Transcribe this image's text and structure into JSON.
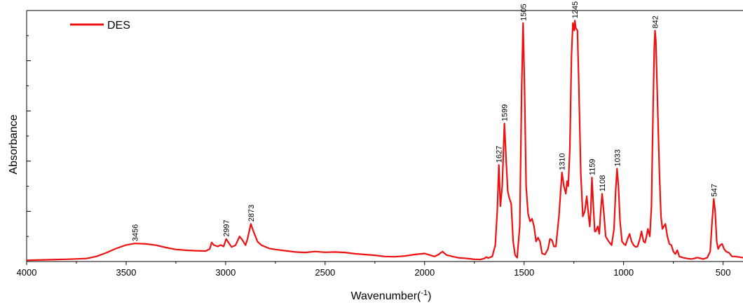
{
  "chart_data": {
    "type": "line",
    "title": "",
    "xlabel": "Wavenumber(",
    "xlabel_sup": "-1",
    "xlabel_end": ")",
    "ylabel": "Absorbance",
    "xlim": [
      4000,
      400
    ],
    "ylim": [
      0,
      100
    ],
    "x_reversed": true,
    "xticks": [
      4000,
      3500,
      3000,
      2500,
      2000,
      1500,
      1000,
      500
    ],
    "xtick_labels": [
      "4000",
      "3500",
      "3000",
      "2500",
      "2000",
      "1500",
      "1000",
      "500"
    ],
    "yticks_major": [
      0,
      20,
      40,
      60,
      80,
      100
    ],
    "yticks_minor": [
      10,
      30,
      50,
      70,
      90
    ],
    "grid": false,
    "legend_position": "top-left",
    "series": [
      {
        "name": "DES",
        "color": "#ee1111",
        "points": [
          [
            4000,
            0.5
          ],
          [
            3900,
            0.7
          ],
          [
            3800,
            0.9
          ],
          [
            3700,
            1.2
          ],
          [
            3650,
            2.0
          ],
          [
            3600,
            3.5
          ],
          [
            3550,
            5.2
          ],
          [
            3500,
            6.6
          ],
          [
            3456,
            7.2
          ],
          [
            3400,
            7.0
          ],
          [
            3350,
            6.5
          ],
          [
            3300,
            5.6
          ],
          [
            3250,
            4.8
          ],
          [
            3200,
            4.5
          ],
          [
            3150,
            4.3
          ],
          [
            3100,
            4.2
          ],
          [
            3080,
            5.0
          ],
          [
            3070,
            7.6
          ],
          [
            3060,
            6.6
          ],
          [
            3040,
            6.0
          ],
          [
            3025,
            6.6
          ],
          [
            3010,
            6.0
          ],
          [
            2997,
            9.0
          ],
          [
            2985,
            7.5
          ],
          [
            2970,
            5.8
          ],
          [
            2950,
            6.5
          ],
          [
            2930,
            10.0
          ],
          [
            2915,
            8.5
          ],
          [
            2900,
            6.5
          ],
          [
            2890,
            9.0
          ],
          [
            2873,
            15.0
          ],
          [
            2860,
            12.0
          ],
          [
            2840,
            8.0
          ],
          [
            2820,
            6.5
          ],
          [
            2780,
            5.2
          ],
          [
            2750,
            4.8
          ],
          [
            2700,
            4.3
          ],
          [
            2650,
            3.8
          ],
          [
            2600,
            3.6
          ],
          [
            2550,
            4.0
          ],
          [
            2500,
            3.7
          ],
          [
            2450,
            3.8
          ],
          [
            2400,
            3.6
          ],
          [
            2350,
            3.1
          ],
          [
            2300,
            2.8
          ],
          [
            2250,
            2.5
          ],
          [
            2200,
            2.0
          ],
          [
            2150,
            1.9
          ],
          [
            2100,
            2.2
          ],
          [
            2050,
            2.8
          ],
          [
            2000,
            3.2
          ],
          [
            1975,
            2.6
          ],
          [
            1950,
            2.0
          ],
          [
            1930,
            2.8
          ],
          [
            1910,
            4.0
          ],
          [
            1890,
            2.6
          ],
          [
            1860,
            2.0
          ],
          [
            1830,
            1.5
          ],
          [
            1800,
            1.3
          ],
          [
            1770,
            1.1
          ],
          [
            1750,
            0.9
          ],
          [
            1720,
            0.8
          ],
          [
            1700,
            1.2
          ],
          [
            1690,
            1.8
          ],
          [
            1680,
            1.4
          ],
          [
            1660,
            2.0
          ],
          [
            1645,
            6.5
          ],
          [
            1635,
            20.0
          ],
          [
            1627,
            38.5
          ],
          [
            1619,
            22.0
          ],
          [
            1610,
            30.0
          ],
          [
            1599,
            55.0
          ],
          [
            1590,
            40.0
          ],
          [
            1582,
            28.0
          ],
          [
            1575,
            25.5
          ],
          [
            1565,
            23.0
          ],
          [
            1555,
            8.0
          ],
          [
            1545,
            2.5
          ],
          [
            1535,
            1.5
          ],
          [
            1522,
            14.0
          ],
          [
            1512,
            70.0
          ],
          [
            1505,
            95.0
          ],
          [
            1498,
            70.0
          ],
          [
            1490,
            30.0
          ],
          [
            1480,
            19.0
          ],
          [
            1470,
            16.0
          ],
          [
            1460,
            17.0
          ],
          [
            1450,
            14.0
          ],
          [
            1440,
            8.0
          ],
          [
            1430,
            9.5
          ],
          [
            1420,
            8.0
          ],
          [
            1410,
            3.2
          ],
          [
            1395,
            2.8
          ],
          [
            1380,
            5.0
          ],
          [
            1370,
            9.0
          ],
          [
            1360,
            8.5
          ],
          [
            1350,
            6.0
          ],
          [
            1340,
            6.0
          ],
          [
            1325,
            18.0
          ],
          [
            1310,
            35.5
          ],
          [
            1300,
            30.0
          ],
          [
            1290,
            27.0
          ],
          [
            1284,
            32.0
          ],
          [
            1278,
            30.0
          ],
          [
            1270,
            45.0
          ],
          [
            1262,
            82.0
          ],
          [
            1255,
            95.0
          ],
          [
            1248,
            92.0
          ],
          [
            1245,
            96.0
          ],
          [
            1240,
            93.0
          ],
          [
            1232,
            92.0
          ],
          [
            1225,
            70.0
          ],
          [
            1215,
            35.0
          ],
          [
            1205,
            18.0
          ],
          [
            1195,
            20.0
          ],
          [
            1185,
            26.0
          ],
          [
            1178,
            20.0
          ],
          [
            1170,
            14.0
          ],
          [
            1165,
            20.0
          ],
          [
            1159,
            33.5
          ],
          [
            1152,
            22.0
          ],
          [
            1145,
            12.0
          ],
          [
            1140,
            12.0
          ],
          [
            1130,
            14.0
          ],
          [
            1122,
            11.0
          ],
          [
            1115,
            20.0
          ],
          [
            1108,
            27.0
          ],
          [
            1100,
            20.0
          ],
          [
            1090,
            10.0
          ],
          [
            1075,
            8.0
          ],
          [
            1060,
            6.5
          ],
          [
            1048,
            13.0
          ],
          [
            1040,
            28.0
          ],
          [
            1033,
            37.0
          ],
          [
            1026,
            30.0
          ],
          [
            1018,
            16.0
          ],
          [
            1008,
            8.0
          ],
          [
            998,
            7.0
          ],
          [
            990,
            6.5
          ],
          [
            980,
            9.0
          ],
          [
            970,
            11.0
          ],
          [
            960,
            8.0
          ],
          [
            950,
            6.5
          ],
          [
            940,
            5.8
          ],
          [
            930,
            6.0
          ],
          [
            918,
            9.0
          ],
          [
            910,
            12.0
          ],
          [
            900,
            8.0
          ],
          [
            892,
            7.5
          ],
          [
            885,
            10.0
          ],
          [
            878,
            13.0
          ],
          [
            868,
            10.0
          ],
          [
            860,
            22.0
          ],
          [
            852,
            60.0
          ],
          [
            846,
            85.0
          ],
          [
            842,
            92.0
          ],
          [
            838,
            88.0
          ],
          [
            830,
            65.0
          ],
          [
            820,
            35.0
          ],
          [
            812,
            18.0
          ],
          [
            805,
            13.0
          ],
          [
            798,
            14.0
          ],
          [
            790,
            15.0
          ],
          [
            780,
            10.0
          ],
          [
            770,
            7.0
          ],
          [
            760,
            6.5
          ],
          [
            750,
            4.0
          ],
          [
            740,
            3.0
          ],
          [
            730,
            4.5
          ],
          [
            720,
            2.0
          ],
          [
            700,
            1.5
          ],
          [
            680,
            1.2
          ],
          [
            660,
            1.0
          ],
          [
            645,
            1.2
          ],
          [
            630,
            1.6
          ],
          [
            620,
            1.4
          ],
          [
            600,
            1.0
          ],
          [
            580,
            1.5
          ],
          [
            565,
            4.0
          ],
          [
            556,
            15.0
          ],
          [
            547,
            25.0
          ],
          [
            540,
            20.0
          ],
          [
            532,
            8.0
          ],
          [
            525,
            5.0
          ],
          [
            515,
            6.5
          ],
          [
            505,
            7.0
          ],
          [
            495,
            5.0
          ],
          [
            485,
            4.0
          ],
          [
            470,
            3.5
          ],
          [
            455,
            2.0
          ],
          [
            440,
            2.0
          ],
          [
            420,
            1.8
          ],
          [
            400,
            1.5
          ]
        ]
      }
    ],
    "annotations": [
      {
        "x": 3456,
        "y": 7.2,
        "text": "3456"
      },
      {
        "x": 2997,
        "y": 9.0,
        "text": "2997"
      },
      {
        "x": 2873,
        "y": 15.0,
        "text": "2873"
      },
      {
        "x": 1627,
        "y": 38.5,
        "text": "1627"
      },
      {
        "x": 1599,
        "y": 55.0,
        "text": "1599"
      },
      {
        "x": 1505,
        "y": 95.0,
        "text": "1505"
      },
      {
        "x": 1310,
        "y": 35.5,
        "text": "1310"
      },
      {
        "x": 1245,
        "y": 96.0,
        "text": "1245"
      },
      {
        "x": 1159,
        "y": 33.5,
        "text": "1159"
      },
      {
        "x": 1108,
        "y": 27.0,
        "text": "1108"
      },
      {
        "x": 1033,
        "y": 37.0,
        "text": "1033"
      },
      {
        "x": 842,
        "y": 92.0,
        "text": "842"
      },
      {
        "x": 547,
        "y": 25.0,
        "text": "547"
      }
    ]
  }
}
